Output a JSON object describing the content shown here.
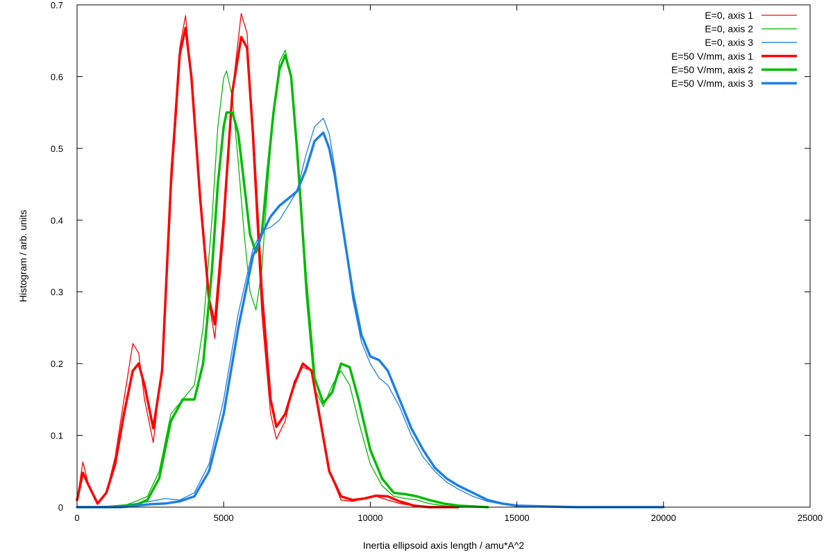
{
  "chart_data": {
    "type": "line",
    "title": "",
    "xlabel": "Inertia ellipsoid axis length / amu*A^2",
    "ylabel": "Histogram / arb. units",
    "xlim": [
      0,
      25000
    ],
    "ylim": [
      0,
      0.7
    ],
    "xticks": [
      0,
      5000,
      10000,
      15000,
      20000,
      25000
    ],
    "xtick_labels": [
      "0",
      "5000",
      "10000",
      "15000",
      "20000",
      "25000"
    ],
    "yticks": [
      0,
      0.1,
      0.2,
      0.3,
      0.4,
      0.5,
      0.6,
      0.7
    ],
    "ytick_labels": [
      "0",
      "0.1",
      "0.2",
      "0.3",
      "0.4",
      "0.5",
      "0.6",
      "0.7"
    ],
    "grid": false,
    "legend_position": "top-right",
    "series": [
      {
        "name": "E=0, axis 1",
        "color": "#ff0000",
        "style": "thin",
        "x": [
          0,
          200,
          400,
          700,
          1000,
          1300,
          1600,
          1900,
          2100,
          2300,
          2600,
          2900,
          3200,
          3500,
          3700,
          3900,
          4200,
          4500,
          4700,
          5000,
          5300,
          5600,
          5800,
          6000,
          6300,
          6600,
          6800,
          7100,
          7400,
          7700,
          8000,
          8300,
          8600,
          9000,
          9400,
          9800,
          10200,
          10600,
          11000,
          11500,
          12000,
          13000
        ],
        "y": [
          0.01,
          0.063,
          0.03,
          0.005,
          0.02,
          0.07,
          0.15,
          0.228,
          0.215,
          0.15,
          0.09,
          0.2,
          0.47,
          0.64,
          0.685,
          0.6,
          0.43,
          0.285,
          0.235,
          0.38,
          0.58,
          0.688,
          0.66,
          0.5,
          0.27,
          0.13,
          0.095,
          0.12,
          0.175,
          0.195,
          0.19,
          0.12,
          0.05,
          0.01,
          0.008,
          0.012,
          0.015,
          0.01,
          0.005,
          0.002,
          0.0,
          0.0
        ]
      },
      {
        "name": "E=0, axis 2",
        "color": "#00bb00",
        "style": "thin",
        "x": [
          0,
          1000,
          1600,
          2000,
          2400,
          2800,
          3200,
          3600,
          4000,
          4300,
          4600,
          4800,
          5000,
          5100,
          5300,
          5500,
          5700,
          5900,
          6100,
          6300,
          6500,
          6700,
          6900,
          7100,
          7300,
          7500,
          7800,
          8100,
          8400,
          8700,
          9000,
          9300,
          9600,
          10000,
          10400,
          10800,
          11200,
          11600,
          12000,
          12500,
          13000,
          14000
        ],
        "y": [
          0.0,
          0.0,
          0.002,
          0.008,
          0.015,
          0.05,
          0.13,
          0.15,
          0.17,
          0.25,
          0.4,
          0.53,
          0.598,
          0.608,
          0.57,
          0.48,
          0.38,
          0.3,
          0.275,
          0.33,
          0.45,
          0.55,
          0.62,
          0.637,
          0.6,
          0.5,
          0.3,
          0.165,
          0.14,
          0.17,
          0.19,
          0.17,
          0.12,
          0.06,
          0.03,
          0.015,
          0.012,
          0.01,
          0.005,
          0.002,
          0.0,
          0.0
        ]
      },
      {
        "name": "E=0, axis 3",
        "color": "#1e7fe6",
        "style": "thin",
        "x": [
          0,
          1500,
          2000,
          2500,
          3000,
          3500,
          4000,
          4500,
          5000,
          5500,
          6000,
          6300,
          6600,
          6900,
          7200,
          7500,
          7800,
          8100,
          8400,
          8600,
          8800,
          9100,
          9400,
          9700,
          10000,
          10300,
          10600,
          11000,
          11400,
          11800,
          12200,
          12600,
          13000,
          13500,
          14000,
          14500,
          15000,
          16000,
          17000,
          18000,
          19000,
          20000
        ],
        "y": [
          0.0,
          0.002,
          0.005,
          0.008,
          0.012,
          0.01,
          0.02,
          0.06,
          0.15,
          0.27,
          0.36,
          0.385,
          0.39,
          0.4,
          0.42,
          0.44,
          0.49,
          0.53,
          0.542,
          0.52,
          0.47,
          0.38,
          0.29,
          0.23,
          0.2,
          0.18,
          0.17,
          0.14,
          0.1,
          0.07,
          0.05,
          0.035,
          0.025,
          0.015,
          0.008,
          0.004,
          0.002,
          0.001,
          0.0,
          0.0,
          0.0,
          0.0
        ]
      },
      {
        "name": "E=50 V/mm, axis 1",
        "color": "#ff0000",
        "style": "thick",
        "x": [
          0,
          200,
          400,
          700,
          1000,
          1300,
          1600,
          1900,
          2100,
          2300,
          2600,
          2900,
          3200,
          3500,
          3700,
          3900,
          4200,
          4500,
          4700,
          5000,
          5300,
          5600,
          5800,
          6000,
          6300,
          6600,
          6800,
          7100,
          7400,
          7700,
          8000,
          8300,
          8600,
          9000,
          9400,
          9800,
          10200,
          10600,
          11000,
          11500,
          12000,
          13000
        ],
        "y": [
          0.01,
          0.048,
          0.03,
          0.005,
          0.02,
          0.06,
          0.13,
          0.19,
          0.2,
          0.17,
          0.11,
          0.19,
          0.45,
          0.63,
          0.668,
          0.6,
          0.43,
          0.29,
          0.255,
          0.4,
          0.58,
          0.655,
          0.64,
          0.52,
          0.3,
          0.15,
          0.112,
          0.13,
          0.17,
          0.2,
          0.19,
          0.12,
          0.05,
          0.015,
          0.01,
          0.012,
          0.016,
          0.015,
          0.008,
          0.002,
          0.0,
          0.0
        ]
      },
      {
        "name": "E=50 V/mm, axis 2",
        "color": "#00bb00",
        "style": "thick",
        "x": [
          0,
          1000,
          1600,
          2000,
          2400,
          2800,
          3200,
          3600,
          4000,
          4300,
          4600,
          4800,
          5000,
          5100,
          5300,
          5500,
          5700,
          5900,
          6100,
          6300,
          6500,
          6700,
          6900,
          7100,
          7300,
          7500,
          7800,
          8100,
          8400,
          8700,
          9000,
          9300,
          9600,
          10000,
          10400,
          10800,
          11200,
          11600,
          12000,
          12500,
          13000,
          14000
        ],
        "y": [
          0.0,
          0.0,
          0.002,
          0.003,
          0.01,
          0.04,
          0.12,
          0.15,
          0.15,
          0.2,
          0.33,
          0.45,
          0.53,
          0.55,
          0.55,
          0.52,
          0.45,
          0.38,
          0.355,
          0.38,
          0.47,
          0.55,
          0.61,
          0.63,
          0.6,
          0.5,
          0.32,
          0.18,
          0.145,
          0.16,
          0.2,
          0.195,
          0.15,
          0.08,
          0.04,
          0.02,
          0.018,
          0.015,
          0.01,
          0.005,
          0.002,
          0.0
        ]
      },
      {
        "name": "E=50 V/mm, axis 3",
        "color": "#1e7fe6",
        "style": "thick",
        "x": [
          0,
          1500,
          2000,
          2500,
          3000,
          3500,
          4000,
          4500,
          5000,
          5500,
          6000,
          6300,
          6600,
          6900,
          7200,
          7500,
          7800,
          8100,
          8400,
          8600,
          8800,
          9100,
          9400,
          9700,
          10000,
          10300,
          10600,
          11000,
          11400,
          11800,
          12200,
          12600,
          13000,
          13500,
          14000,
          14500,
          15000,
          16000,
          17000,
          18000,
          19000,
          20000
        ],
        "y": [
          0.0,
          0.0,
          0.002,
          0.004,
          0.005,
          0.008,
          0.015,
          0.05,
          0.13,
          0.25,
          0.35,
          0.38,
          0.405,
          0.42,
          0.43,
          0.44,
          0.47,
          0.51,
          0.522,
          0.5,
          0.46,
          0.38,
          0.3,
          0.24,
          0.21,
          0.205,
          0.19,
          0.15,
          0.11,
          0.08,
          0.055,
          0.04,
          0.03,
          0.02,
          0.01,
          0.005,
          0.002,
          0.001,
          0.0,
          0.0,
          0.0,
          0.0
        ]
      }
    ]
  }
}
